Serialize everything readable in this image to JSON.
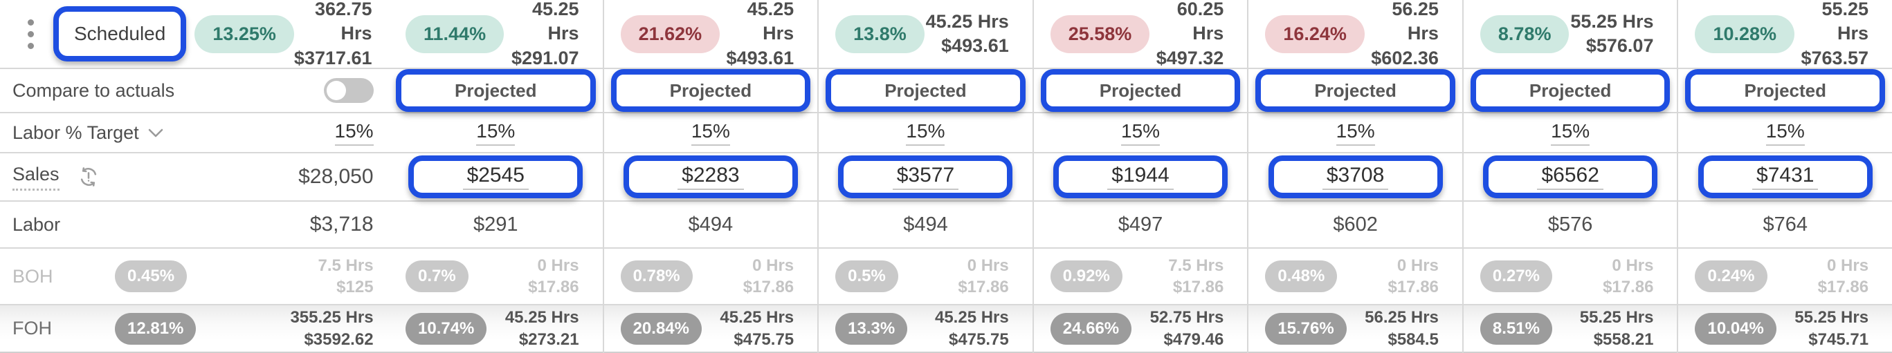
{
  "colors": {
    "annotation_blue": "#1e4ee1",
    "positive_badge_bg": "#cfe9e1",
    "positive_badge_text": "#2f7a6b",
    "negative_badge_bg": "#f2d4d6",
    "negative_badge_text": "#8e353c",
    "gridline": "#d8d8d8"
  },
  "label_column": {
    "scheduled_label": "Scheduled",
    "scheduled_badge": "13.25%",
    "scheduled_tone": "positive",
    "scheduled_hours": "362.75 Hrs",
    "scheduled_amount": "$3717.61",
    "compare_label": "Compare to actuals",
    "compare_toggle_on": false,
    "labor_target_label": "Labor % Target",
    "labor_target_value": "15%",
    "sales_label": "Sales",
    "sales_value": "$28,050",
    "labor_label": "Labor",
    "labor_value": "$3,718",
    "boh_label": "BOH",
    "boh_badge": "0.45%",
    "boh_hours": "7.5 Hrs",
    "boh_amount": "$125",
    "foh_label": "FOH",
    "foh_badge": "12.81%",
    "foh_hours": "355.25 Hrs",
    "foh_amount": "$3592.62"
  },
  "columns": [
    {
      "pct": "11.44%",
      "tone": "positive",
      "hours": "45.25 Hrs",
      "amount": "$291.07",
      "projected": "Projected",
      "labor_target": "15%",
      "sales": "$2545",
      "labor": "$291",
      "boh_pct": "0.7%",
      "boh_hours": "0 Hrs",
      "boh_amount": "$17.86",
      "foh_pct": "10.74%",
      "foh_hours": "45.25 Hrs",
      "foh_amount": "$273.21"
    },
    {
      "pct": "21.62%",
      "tone": "negative",
      "hours": "45.25 Hrs",
      "amount": "$493.61",
      "projected": "Projected",
      "labor_target": "15%",
      "sales": "$2283",
      "labor": "$494",
      "boh_pct": "0.78%",
      "boh_hours": "0 Hrs",
      "boh_amount": "$17.86",
      "foh_pct": "20.84%",
      "foh_hours": "45.25 Hrs",
      "foh_amount": "$475.75"
    },
    {
      "pct": "13.8%",
      "tone": "positive",
      "hours": "45.25 Hrs",
      "amount": "$493.61",
      "projected": "Projected",
      "labor_target": "15%",
      "sales": "$3577",
      "labor": "$494",
      "boh_pct": "0.5%",
      "boh_hours": "0 Hrs",
      "boh_amount": "$17.86",
      "foh_pct": "13.3%",
      "foh_hours": "45.25 Hrs",
      "foh_amount": "$475.75"
    },
    {
      "pct": "25.58%",
      "tone": "negative",
      "hours": "60.25 Hrs",
      "amount": "$497.32",
      "projected": "Projected",
      "labor_target": "15%",
      "sales": "$1944",
      "labor": "$497",
      "boh_pct": "0.92%",
      "boh_hours": "7.5 Hrs",
      "boh_amount": "$17.86",
      "foh_pct": "24.66%",
      "foh_hours": "52.75 Hrs",
      "foh_amount": "$479.46"
    },
    {
      "pct": "16.24%",
      "tone": "negative",
      "hours": "56.25 Hrs",
      "amount": "$602.36",
      "projected": "Projected",
      "labor_target": "15%",
      "sales": "$3708",
      "labor": "$602",
      "boh_pct": "0.48%",
      "boh_hours": "0 Hrs",
      "boh_amount": "$17.86",
      "foh_pct": "15.76%",
      "foh_hours": "56.25 Hrs",
      "foh_amount": "$584.5"
    },
    {
      "pct": "8.78%",
      "tone": "positive",
      "hours": "55.25 Hrs",
      "amount": "$576.07",
      "projected": "Projected",
      "labor_target": "15%",
      "sales": "$6562",
      "labor": "$576",
      "boh_pct": "0.27%",
      "boh_hours": "0 Hrs",
      "boh_amount": "$17.86",
      "foh_pct": "8.51%",
      "foh_hours": "55.25 Hrs",
      "foh_amount": "$558.21"
    },
    {
      "pct": "10.28%",
      "tone": "positive",
      "hours": "55.25 Hrs",
      "amount": "$763.57",
      "projected": "Projected",
      "labor_target": "15%",
      "sales": "$7431",
      "labor": "$764",
      "boh_pct": "0.24%",
      "boh_hours": "0 Hrs",
      "boh_amount": "$17.86",
      "foh_pct": "10.04%",
      "foh_hours": "55.25 Hrs",
      "foh_amount": "$745.71"
    }
  ]
}
